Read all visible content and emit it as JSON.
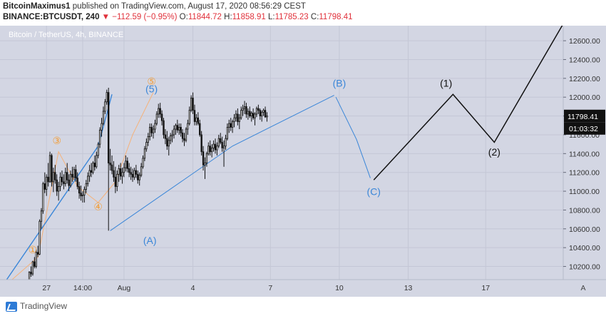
{
  "header": {
    "author": "BitcoinMaximus1",
    "published_text": "published on TradingView.com, August 17, 2020 08:56:29 CEST",
    "symbol": "BINANCE:BTCUSDT, 240",
    "change": "▼ −112.59 (−0.95%)",
    "open_label": "O:",
    "open_value": "11844.72",
    "high_label": "H:",
    "high_value": "11858.91",
    "low_label": "L:",
    "low_value": "11785.23",
    "close_label": "C:",
    "close_value": "11798.41"
  },
  "footer": {
    "brand": "TradingView"
  },
  "chart_data": {
    "type": "candlestick",
    "title": "Bitcoin / TetherUS, 4h, BINANCE",
    "ylim": [
      10060,
      12760
    ],
    "y_ticks": [
      10200,
      10400,
      10600,
      10800,
      11000,
      11200,
      11400,
      11600,
      11800,
      12000,
      12200,
      12400,
      12600
    ],
    "y_tick_labels": [
      "10200.00",
      "10400.00",
      "10600.00",
      "10800.00",
      "11000.00",
      "11200.00",
      "11400.00",
      "11600.00",
      "11800.00",
      "12000.00",
      "12200.00",
      "12400.00",
      "12600.00"
    ],
    "x_ticks": [
      {
        "label": "27",
        "bar": 10
      },
      {
        "label": "14:00",
        "bar": 31
      },
      {
        "label": "Aug",
        "bar": 55
      },
      {
        "label": "4",
        "bar": 95
      },
      {
        "label": "7",
        "bar": 140
      },
      {
        "label": "10",
        "bar": 180
      },
      {
        "label": "13",
        "bar": 220
      },
      {
        "label": "17",
        "bar": 265
      }
    ],
    "bar_range": [
      -17,
      310
    ],
    "last_price_label": "11798.41",
    "countdown_label": "01:03:32",
    "last_price": 11798.41,
    "grid": true,
    "axis_corner_label": "A",
    "candles": [
      [
        0,
        10050,
        10150,
        10030,
        10140
      ],
      [
        1,
        10140,
        10200,
        10090,
        10120
      ],
      [
        2,
        10120,
        10260,
        10100,
        10250
      ],
      [
        3,
        10250,
        10300,
        10180,
        10200
      ],
      [
        4,
        10200,
        10380,
        10180,
        10350
      ],
      [
        5,
        10350,
        10420,
        10300,
        10330
      ],
      [
        6,
        10330,
        10700,
        10320,
        10680
      ],
      [
        7,
        10680,
        10820,
        10600,
        10790
      ],
      [
        8,
        10790,
        11100,
        10760,
        11080
      ],
      [
        9,
        11080,
        11200,
        10980,
        11020
      ],
      [
        10,
        11020,
        11180,
        10950,
        11150
      ],
      [
        11,
        11150,
        11300,
        11050,
        11100
      ],
      [
        12,
        11100,
        11420,
        11090,
        11380
      ],
      [
        13,
        11380,
        11400,
        11050,
        11100
      ],
      [
        14,
        11100,
        11250,
        10990,
        11200
      ],
      [
        15,
        11200,
        11280,
        11080,
        11120
      ],
      [
        16,
        11120,
        11180,
        10950,
        11000
      ],
      [
        17,
        11000,
        11100,
        10900,
        11050
      ],
      [
        18,
        11050,
        11200,
        11000,
        11150
      ],
      [
        19,
        11150,
        11220,
        11060,
        11100
      ],
      [
        20,
        11100,
        11180,
        11020,
        11080
      ],
      [
        21,
        11080,
        11250,
        11050,
        11200
      ],
      [
        22,
        11200,
        11300,
        11080,
        11120
      ],
      [
        23,
        11120,
        11180,
        11000,
        11060
      ],
      [
        24,
        11060,
        11220,
        11040,
        11180
      ],
      [
        25,
        11180,
        11260,
        11100,
        11150
      ],
      [
        26,
        11150,
        11260,
        11120,
        11230
      ],
      [
        27,
        11230,
        11280,
        11100,
        11140
      ],
      [
        28,
        11140,
        11200,
        11020,
        11050
      ],
      [
        29,
        11050,
        11100,
        10920,
        10980
      ],
      [
        30,
        10980,
        11060,
        10900,
        10950
      ],
      [
        31,
        10950,
        11000,
        10880,
        10960
      ],
      [
        32,
        10960,
        11050,
        10880,
        11020
      ],
      [
        33,
        11020,
        11120,
        10980,
        11080
      ],
      [
        34,
        11080,
        11200,
        11050,
        11160
      ],
      [
        35,
        11160,
        11280,
        11100,
        11220
      ],
      [
        36,
        11220,
        11300,
        11150,
        11200
      ],
      [
        37,
        11200,
        11320,
        11180,
        11300
      ],
      [
        38,
        11300,
        11380,
        11220,
        11260
      ],
      [
        39,
        11260,
        11420,
        11240,
        11380
      ],
      [
        40,
        11380,
        11520,
        11350,
        11500
      ],
      [
        41,
        11500,
        11680,
        11460,
        11650
      ],
      [
        42,
        11650,
        11780,
        11580,
        11720
      ],
      [
        43,
        11720,
        11900,
        11700,
        11850
      ],
      [
        44,
        11850,
        11980,
        11820,
        11950
      ],
      [
        45,
        11950,
        12080,
        11920,
        12050
      ],
      [
        46,
        12050,
        12100,
        10580,
        11300
      ],
      [
        47,
        11300,
        11450,
        11220,
        11280
      ],
      [
        48,
        11280,
        11380,
        11180,
        11220
      ],
      [
        49,
        11220,
        11320,
        11100,
        11150
      ],
      [
        50,
        11150,
        11260,
        10980,
        11050
      ],
      [
        51,
        11050,
        11220,
        11000,
        11180
      ],
      [
        52,
        11180,
        11280,
        11100,
        11240
      ],
      [
        53,
        11240,
        11300,
        11120,
        11160
      ],
      [
        54,
        11160,
        11250,
        11080,
        11200
      ],
      [
        55,
        11200,
        11300,
        11150,
        11250
      ],
      [
        56,
        11250,
        11380,
        11210,
        11320
      ],
      [
        57,
        11320,
        11360,
        11200,
        11240
      ],
      [
        58,
        11240,
        11300,
        11150,
        11200
      ],
      [
        59,
        11200,
        11260,
        11120,
        11180
      ],
      [
        60,
        11180,
        11240,
        11100,
        11150
      ],
      [
        61,
        11150,
        11250,
        11120,
        11220
      ],
      [
        62,
        11220,
        11280,
        11140,
        11180
      ],
      [
        63,
        11180,
        11220,
        11080,
        11120
      ],
      [
        64,
        11120,
        11200,
        11060,
        11170
      ],
      [
        65,
        11170,
        11300,
        11150,
        11260
      ],
      [
        66,
        11260,
        11380,
        11240,
        11350
      ],
      [
        67,
        11350,
        11480,
        11320,
        11450
      ],
      [
        68,
        11450,
        11560,
        11420,
        11520
      ],
      [
        69,
        11520,
        11620,
        11480,
        11580
      ],
      [
        70,
        11580,
        11720,
        11540,
        11680
      ],
      [
        71,
        11680,
        11720,
        11580,
        11620
      ],
      [
        72,
        11620,
        11700,
        11560,
        11660
      ],
      [
        73,
        11660,
        11760,
        11620,
        11720
      ],
      [
        74,
        11720,
        11850,
        11700,
        11820
      ],
      [
        75,
        11820,
        11930,
        11780,
        11880
      ],
      [
        76,
        11880,
        11940,
        11780,
        11820
      ],
      [
        77,
        11820,
        11860,
        11700,
        11750
      ],
      [
        78,
        11750,
        11780,
        11560,
        11600
      ],
      [
        79,
        11600,
        11660,
        11500,
        11560
      ],
      [
        80,
        11560,
        11640,
        11440,
        11480
      ],
      [
        81,
        11480,
        11580,
        11380,
        11540
      ],
      [
        82,
        11540,
        11620,
        11500,
        11590
      ],
      [
        83,
        11590,
        11650,
        11520,
        11600
      ],
      [
        84,
        11600,
        11700,
        11560,
        11660
      ],
      [
        85,
        11660,
        11720,
        11600,
        11700
      ],
      [
        86,
        11700,
        11760,
        11620,
        11650
      ],
      [
        87,
        11650,
        11720,
        11600,
        11680
      ],
      [
        88,
        11680,
        11720,
        11580,
        11620
      ],
      [
        89,
        11620,
        11660,
        11520,
        11560
      ],
      [
        90,
        11560,
        11620,
        11480,
        11540
      ],
      [
        91,
        11540,
        11680,
        11520,
        11660
      ],
      [
        92,
        11660,
        11760,
        11600,
        11720
      ],
      [
        93,
        11720,
        11900,
        11700,
        11860
      ],
      [
        94,
        11860,
        12020,
        11840,
        11990
      ],
      [
        95,
        11990,
        12050,
        11820,
        11860
      ],
      [
        96,
        11860,
        11920,
        11700,
        11740
      ],
      [
        97,
        11740,
        11820,
        11700,
        11780
      ],
      [
        98,
        11780,
        11840,
        11700,
        11720
      ],
      [
        99,
        11720,
        11760,
        11580,
        11600
      ],
      [
        100,
        11600,
        11640,
        11380,
        11420
      ],
      [
        101,
        11420,
        11480,
        11220,
        11280
      ],
      [
        102,
        11280,
        11360,
        11130,
        11300
      ],
      [
        103,
        11300,
        11420,
        11260,
        11400
      ],
      [
        104,
        11400,
        11520,
        11380,
        11480
      ],
      [
        105,
        11480,
        11540,
        11380,
        11420
      ],
      [
        106,
        11420,
        11500,
        11360,
        11460
      ],
      [
        107,
        11460,
        11540,
        11420,
        11500
      ],
      [
        108,
        11500,
        11560,
        11400,
        11440
      ],
      [
        109,
        11440,
        11520,
        11380,
        11480
      ],
      [
        110,
        11480,
        11600,
        11460,
        11560
      ],
      [
        111,
        11560,
        11620,
        11500,
        11520
      ],
      [
        112,
        11520,
        11580,
        11420,
        11460
      ],
      [
        113,
        11460,
        11540,
        11260,
        11480
      ],
      [
        114,
        11480,
        11600,
        11440,
        11560
      ],
      [
        115,
        11560,
        11720,
        11540,
        11680
      ],
      [
        116,
        11680,
        11760,
        11620,
        11720
      ],
      [
        117,
        11720,
        11780,
        11640,
        11680
      ],
      [
        118,
        11680,
        11760,
        11620,
        11740
      ],
      [
        119,
        11740,
        11820,
        11680,
        11780
      ],
      [
        120,
        11780,
        11860,
        11740,
        11820
      ],
      [
        121,
        11820,
        11880,
        11700,
        11740
      ],
      [
        122,
        11740,
        11820,
        11660,
        11780
      ],
      [
        123,
        11780,
        11900,
        11760,
        11860
      ],
      [
        124,
        11860,
        11920,
        11800,
        11880
      ],
      [
        125,
        11880,
        11960,
        11820,
        11900
      ],
      [
        126,
        11900,
        11940,
        11780,
        11820
      ],
      [
        127,
        11820,
        11880,
        11760,
        11850
      ],
      [
        128,
        11850,
        11900,
        11780,
        11800
      ],
      [
        129,
        11800,
        11850,
        11740,
        11830
      ],
      [
        130,
        11830,
        11880,
        11760,
        11780
      ],
      [
        131,
        11780,
        11840,
        11700,
        11820
      ],
      [
        132,
        11820,
        11900,
        11790,
        11880
      ],
      [
        133,
        11880,
        11920,
        11820,
        11860
      ],
      [
        134,
        11860,
        11880,
        11760,
        11800
      ],
      [
        135,
        11800,
        11860,
        11740,
        11840
      ],
      [
        136,
        11840,
        11880,
        11800,
        11860
      ],
      [
        137,
        11860,
        11900,
        11780,
        11790
      ],
      [
        138,
        11790,
        11840,
        11740,
        11800
      ]
    ],
    "blue_line_1": [
      [
        -15,
        10010
      ],
      [
        40,
        11480
      ],
      [
        48,
        12030
      ]
    ],
    "blue_line_2": [
      [
        47,
        10580
      ],
      [
        118,
        11480
      ],
      [
        177,
        12020
      ]
    ],
    "blue_line_3": [
      [
        178,
        12000
      ],
      [
        190,
        11550
      ],
      [
        198,
        11140
      ]
    ],
    "black_path": [
      [
        200,
        11120
      ],
      [
        246,
        12030
      ],
      [
        270,
        11520
      ],
      [
        310,
        12780
      ]
    ],
    "orange_path": [
      [
        -10,
        10060
      ],
      [
        5,
        10300
      ],
      [
        17,
        11420
      ],
      [
        28,
        11050
      ],
      [
        40,
        10880
      ],
      [
        50,
        11100
      ],
      [
        60,
        11600
      ],
      [
        72,
        12050
      ]
    ],
    "wave_labels": [
      {
        "text": "①",
        "bar": 2,
        "price": 10340,
        "color": "#f39c34"
      },
      {
        "text": "③",
        "bar": 16,
        "price": 11500,
        "color": "#f39c34"
      },
      {
        "text": "④",
        "bar": 40,
        "price": 10800,
        "color": "#f39c34"
      },
      {
        "text": "⑤",
        "bar": 71,
        "price": 12130,
        "color": "#f39c34"
      },
      {
        "text": "(5)",
        "bar": 71,
        "price": 12050,
        "color": "#3a86d8"
      },
      {
        "text": "(A)",
        "bar": 70,
        "price": 10440,
        "color": "#3a86d8"
      },
      {
        "text": "(B)",
        "bar": 180,
        "price": 12110,
        "color": "#3a86d8"
      },
      {
        "text": "(C)",
        "bar": 200,
        "price": 10960,
        "color": "#3a86d8"
      },
      {
        "text": "(1)",
        "bar": 242,
        "price": 12110,
        "color": "#111111"
      },
      {
        "text": "(2)",
        "bar": 270,
        "price": 11380,
        "color": "#111111"
      }
    ],
    "colors": {
      "background": "#d3d6e3",
      "grid": "#c4c7d6",
      "up_candle": "#ffffff",
      "down_candle": "#111111",
      "blue_line": "#3a86d8",
      "black_line": "#111111",
      "orange_line": "#f5b27a",
      "last_price_bg": "#111111"
    }
  }
}
